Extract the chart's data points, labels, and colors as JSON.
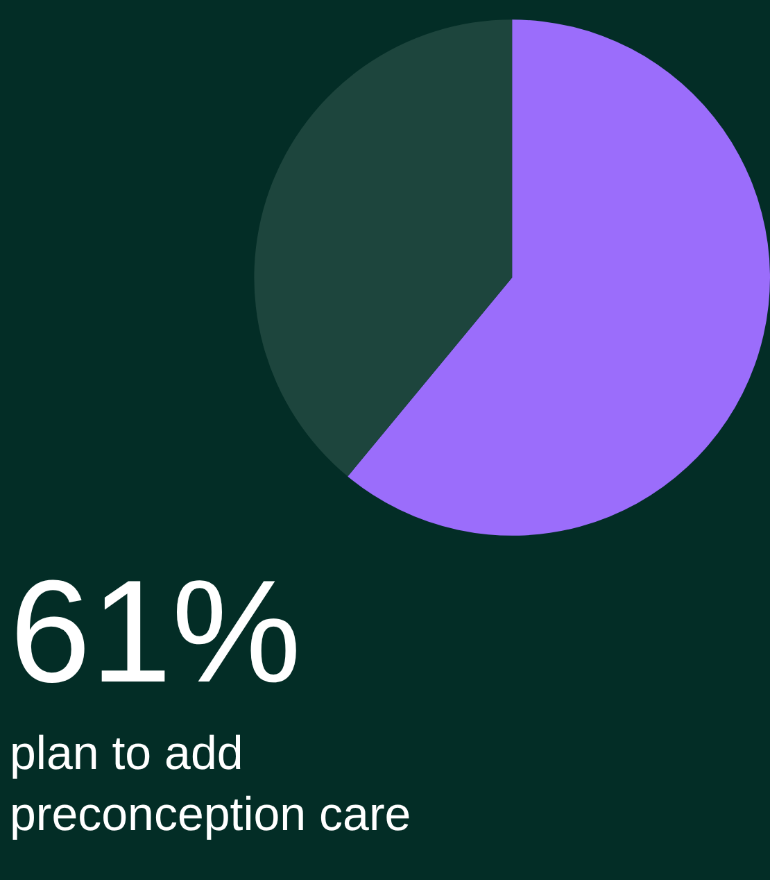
{
  "chart_data": {
    "type": "pie",
    "title": "61%",
    "subtitle": "plan to add preconception care",
    "categories": [
      null,
      null
    ],
    "values": [
      61,
      39
    ],
    "colors": [
      "#9b6dfb",
      "#1d453d"
    ],
    "legend": false
  }
}
